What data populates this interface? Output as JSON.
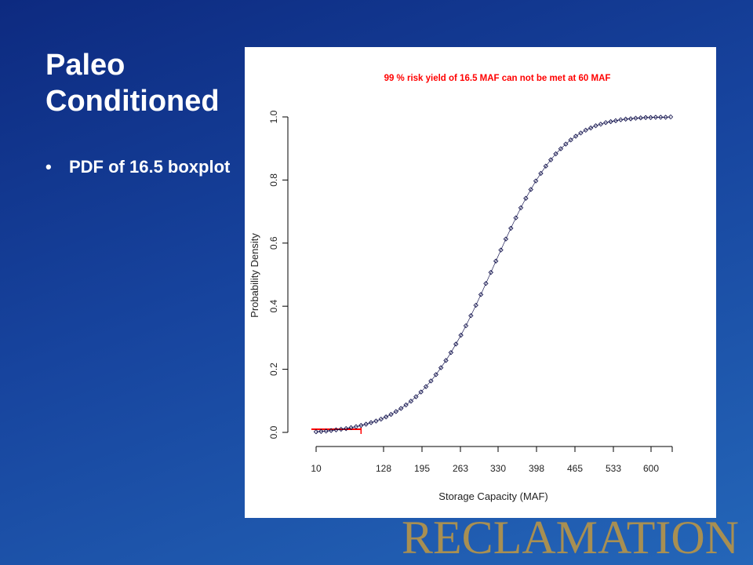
{
  "slide": {
    "title_lines": [
      "Paleo",
      "Conditioned"
    ],
    "bullets": [
      "PDF of 16.5 boxplot"
    ]
  },
  "logo": {
    "text": "RECLAMATION",
    "color": "#a88f52"
  },
  "chart_data": {
    "type": "scatter",
    "title": "99 % risk yield of 16.5 MAF can not be met at  60 MAF",
    "title_color": "#ff0000",
    "xlabel": "Storage Capacity (MAF)",
    "ylabel": "Probability Density",
    "x_tick_labels": [
      "10",
      "128",
      "195",
      "263",
      "330",
      "398",
      "465",
      "533",
      "600"
    ],
    "y_tick_labels": [
      "0.0",
      "0.2",
      "0.4",
      "0.6",
      "0.8",
      "1.0"
    ],
    "ylim": [
      0,
      1
    ],
    "grid": false,
    "series": [
      {
        "marker": "open-diamond",
        "color": "#000040",
        "values": [
          0.002,
          0.003,
          0.004,
          0.006,
          0.008,
          0.01,
          0.012,
          0.015,
          0.018,
          0.022,
          0.026,
          0.031,
          0.036,
          0.042,
          0.049,
          0.057,
          0.066,
          0.076,
          0.087,
          0.099,
          0.113,
          0.128,
          0.145,
          0.163,
          0.183,
          0.205,
          0.228,
          0.253,
          0.28,
          0.308,
          0.338,
          0.37,
          0.403,
          0.437,
          0.472,
          0.507,
          0.543,
          0.578,
          0.613,
          0.647,
          0.68,
          0.712,
          0.742,
          0.77,
          0.797,
          0.821,
          0.844,
          0.864,
          0.883,
          0.899,
          0.914,
          0.927,
          0.939,
          0.949,
          0.958,
          0.965,
          0.972,
          0.977,
          0.982,
          0.985,
          0.988,
          0.991,
          0.993,
          0.994,
          0.996,
          0.997,
          0.998,
          0.998,
          0.999,
          0.999,
          0.999,
          1.0
        ]
      }
    ],
    "reference_line": {
      "color": "#ff0000",
      "y": 0.01,
      "from_point": 1,
      "to_point": 10
    }
  }
}
